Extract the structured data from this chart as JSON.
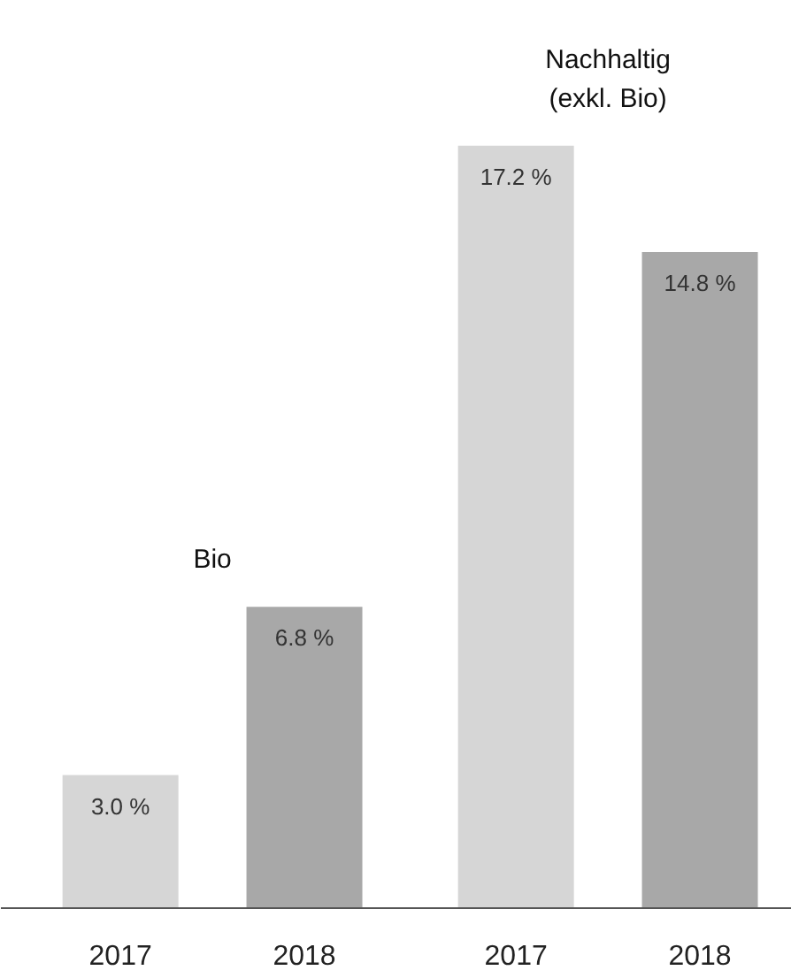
{
  "chart_data": {
    "type": "bar",
    "categories": [
      "2017",
      "2018",
      "2017",
      "2018"
    ],
    "values": [
      3.0,
      6.8,
      17.2,
      14.8
    ],
    "colors": [
      "#d6d6d6",
      "#a8a8a8",
      "#d6d6d6",
      "#a8a8a8"
    ],
    "value_labels": [
      "3.0 %",
      "6.8 %",
      "17.2 %",
      "14.8 %"
    ],
    "annotations": [
      "Bio",
      "Nachhaltig\n(exkl. Bio)"
    ],
    "grid": false
  }
}
